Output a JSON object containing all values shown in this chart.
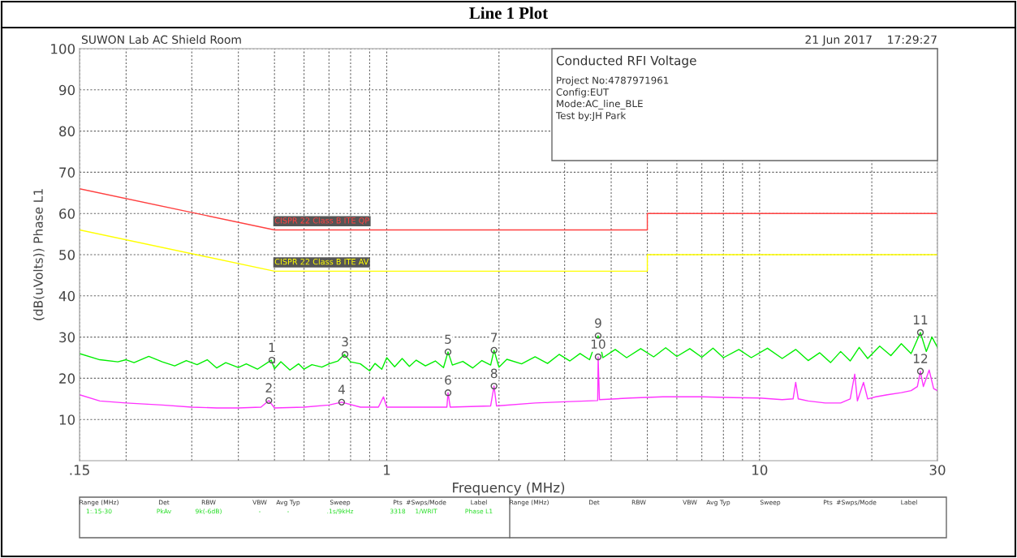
{
  "chart_data": {
    "type": "line",
    "title": "Line 1 Plot",
    "xlabel": "Frequency (MHz)",
    "ylabel": "(dB(uVolts)) Phase L1",
    "log": "x",
    "grid": true,
    "legend": false,
    "marker": "none",
    "line_style": "solid",
    "tick_labels": "xy",
    "xlim": [
      0.15,
      30
    ],
    "ylim": [
      0,
      100
    ],
    "xticks": [
      {
        "value": 0.15,
        "label": ".15"
      },
      {
        "value": 0.2,
        "label": null
      },
      {
        "value": 0.3,
        "label": null
      },
      {
        "value": 0.4,
        "label": null
      },
      {
        "value": 0.5,
        "label": null
      },
      {
        "value": 0.6,
        "label": null
      },
      {
        "value": 0.7,
        "label": null
      },
      {
        "value": 0.8,
        "label": null
      },
      {
        "value": 0.9,
        "label": null
      },
      1,
      {
        "value": 2,
        "label": null
      },
      {
        "value": 3,
        "label": null
      },
      {
        "value": 4,
        "label": null
      },
      {
        "value": 5,
        "label": null
      },
      {
        "value": 6,
        "label": null
      },
      {
        "value": 7,
        "label": null
      },
      {
        "value": 8,
        "label": null
      },
      {
        "value": 9,
        "label": null
      },
      10,
      {
        "value": 20,
        "label": null
      },
      30
    ],
    "yticks": [
      10,
      20,
      30,
      40,
      50,
      60,
      70,
      80,
      90,
      100
    ],
    "series": [
      {
        "name": "CISPR 22 Class B ITE QP",
        "color": "#ff4040",
        "x": [
          0.15,
          0.5,
          5,
          5,
          30
        ],
        "values": [
          66,
          56,
          56,
          60,
          60
        ]
      },
      {
        "name": "CISPR 22 Class B ITE AV",
        "color": "#ffff00",
        "x": [
          0.15,
          0.5,
          5,
          5,
          30
        ],
        "values": [
          56,
          46,
          46,
          50,
          50
        ]
      },
      {
        "color": "#00ee00",
        "x": [
          0.15,
          0.17,
          0.19,
          0.2,
          0.21,
          0.23,
          0.25,
          0.27,
          0.29,
          0.31,
          0.33,
          0.35,
          0.37,
          0.4,
          0.42,
          0.45,
          0.49,
          0.5,
          0.52,
          0.55,
          0.58,
          0.6,
          0.63,
          0.67,
          0.7,
          0.74,
          0.77,
          0.8,
          0.85,
          0.9,
          0.93,
          0.97,
          1.0,
          1.05,
          1.1,
          1.15,
          1.2,
          1.27,
          1.35,
          1.42,
          1.46,
          1.5,
          1.6,
          1.7,
          1.8,
          1.9,
          1.94,
          2.0,
          2.1,
          2.3,
          2.5,
          2.7,
          2.9,
          3.1,
          3.3,
          3.5,
          3.69,
          3.8,
          4.1,
          4.4,
          4.8,
          5.2,
          5.6,
          6.0,
          6.5,
          7.0,
          7.5,
          8.0,
          8.8,
          9.5,
          10.5,
          11.5,
          12.5,
          13.5,
          14.5,
          15.5,
          16.5,
          17.5,
          18.5,
          19.5,
          21,
          22.5,
          24,
          25.5,
          27,
          28,
          29,
          30
        ],
        "values": [
          26,
          24.5,
          24,
          24.5,
          23.8,
          25.3,
          24,
          23,
          24.3,
          23.3,
          24.5,
          22.5,
          23.8,
          22.6,
          23.5,
          22.2,
          24.4,
          22.3,
          24,
          22,
          23.5,
          22.2,
          23.3,
          22.7,
          23.5,
          24.2,
          25.8,
          24,
          23.5,
          21.8,
          23.6,
          22.2,
          25,
          22.8,
          24.8,
          22.9,
          24.4,
          23,
          24.2,
          22.6,
          26.4,
          23.2,
          24.1,
          22.5,
          24.3,
          23.2,
          26.8,
          22.7,
          24.6,
          23.5,
          25.2,
          23.6,
          25.8,
          24.2,
          26,
          24.5,
          30.3,
          25,
          27,
          25,
          27.2,
          25.2,
          27.4,
          25.3,
          27.2,
          25.1,
          27.3,
          25,
          27,
          25,
          27.3,
          24.8,
          27,
          24.3,
          26.2,
          23.8,
          26.5,
          24.2,
          27.5,
          24.8,
          27.8,
          25.5,
          28.4,
          26,
          31.1,
          26.5,
          30,
          27.5
        ]
      },
      {
        "color": "#ff33ff",
        "x": [
          0.15,
          0.17,
          0.2,
          0.25,
          0.3,
          0.35,
          0.4,
          0.46,
          0.483,
          0.5,
          0.6,
          0.7,
          0.757,
          0.85,
          0.95,
          0.98,
          1.0,
          1.2,
          1.45,
          1.46,
          1.48,
          1.9,
          1.94,
          1.97,
          2.5,
          3.0,
          3.68,
          3.69,
          3.72,
          4.5,
          5.5,
          7.0,
          8.5,
          10,
          11.5,
          12.3,
          12.5,
          12.7,
          13.5,
          15,
          16.5,
          17.5,
          18,
          18.3,
          19,
          19.5,
          20.5,
          22,
          24,
          25.5,
          26.5,
          27,
          27.5,
          28.5,
          29.3,
          30
        ],
        "values": [
          16,
          14.5,
          14,
          13.5,
          13,
          12.8,
          12.8,
          13,
          14.6,
          12.8,
          13,
          13.5,
          14.2,
          13,
          13,
          15.5,
          13,
          13,
          13,
          16.5,
          13,
          13.3,
          18.1,
          13.3,
          14,
          14.3,
          14.6,
          25.2,
          14.8,
          15.2,
          15.5,
          15.5,
          15.3,
          15.2,
          14.8,
          15,
          19,
          15,
          14.5,
          14,
          14,
          15,
          21,
          14.5,
          19,
          15,
          15.5,
          16,
          16.5,
          17,
          18,
          21.7,
          18,
          22,
          17.5,
          17
        ]
      }
    ],
    "annotations": [
      "SUWON Lab AC Shield Room",
      "21 Jun 2017    17:29:27",
      "Conducted RFI Voltage",
      "Project No:4787971961",
      "Config:EUT",
      "Mode:AC_line_BLE",
      "Test by:JH Park",
      "Range (MHz)",
      "Det",
      "RBW",
      "VBW",
      "Avg Typ",
      "Sweep",
      "Pts",
      "#Swps/Mode",
      "Label",
      "1:.15-30",
      "PkAv",
      "9k(-6dB)",
      "-",
      "-",
      ".1s/9kHz",
      "3318",
      "1/WRIT",
      "Phase L1",
      "Range (MHz)",
      "Det",
      "RBW",
      "VBW",
      "Avg Typ",
      "Sweep",
      "Pts",
      "#Swps/Mode",
      "Label",
      {
        "text": "1",
        "x": 0.492,
        "y": 24.4
      },
      {
        "text": "2",
        "x": 0.483,
        "y": 14.6
      },
      {
        "text": "3",
        "x": 0.773,
        "y": 25.8
      },
      {
        "text": "4",
        "x": 0.757,
        "y": 14.2
      },
      {
        "text": "5",
        "x": 1.46,
        "y": 26.4
      },
      {
        "text": "6",
        "x": 1.46,
        "y": 16.5
      },
      {
        "text": "7",
        "x": 1.94,
        "y": 26.8
      },
      {
        "text": "8",
        "x": 1.94,
        "y": 18.1
      },
      {
        "text": "9",
        "x": 3.69,
        "y": 30.3
      },
      {
        "text": "10",
        "x": 3.69,
        "y": 25.2
      },
      {
        "text": "11",
        "x": 27.0,
        "y": 31.1
      },
      {
        "text": "12",
        "x": 27.0,
        "y": 21.7
      }
    ]
  }
}
